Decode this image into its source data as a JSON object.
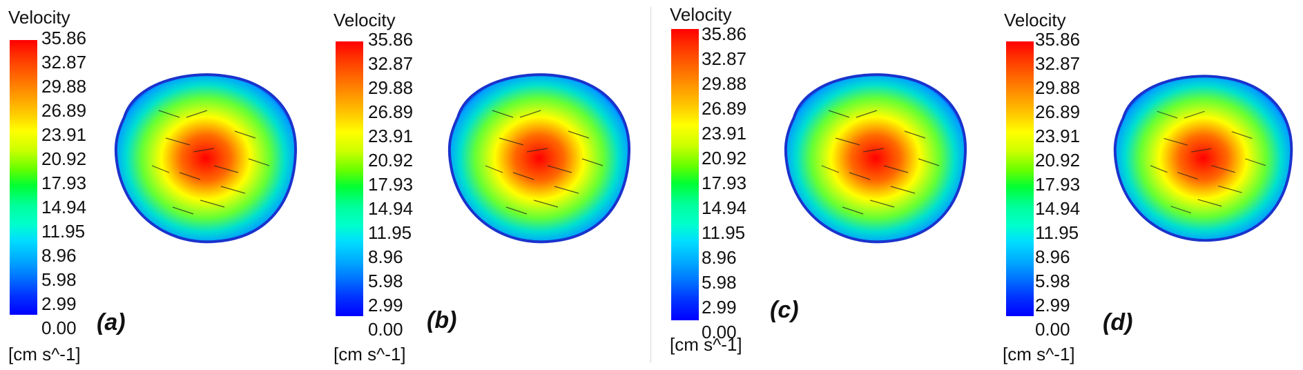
{
  "legend_title": "Velocity",
  "units": "[cm s^-1]",
  "ticks": [
    "35.86",
    "32.87",
    "29.88",
    "26.89",
    "23.91",
    "20.92",
    "17.93",
    "14.94",
    "11.95",
    "8.96",
    "5.98",
    "2.99",
    "0.00"
  ],
  "panels": [
    {
      "label": "(a)"
    },
    {
      "label": "(b)"
    },
    {
      "label": "(c)"
    },
    {
      "label": "(d)"
    }
  ],
  "colors": {
    "max": "#ff0000",
    "high": "#ff8000",
    "mid_high": "#ffff00",
    "mid": "#00ff40",
    "mid_low": "#00ccff",
    "low": "#0000ff",
    "outline": "#1a33cc"
  }
}
